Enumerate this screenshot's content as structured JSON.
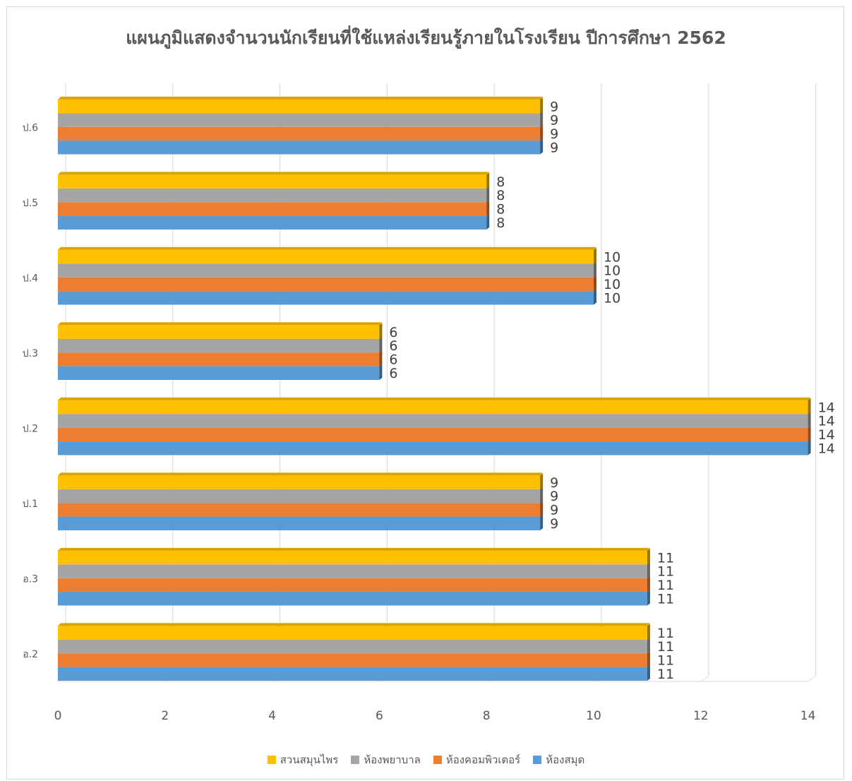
{
  "chart_data": {
    "type": "bar",
    "orientation": "horizontal",
    "title": "แผนภูมิแสดงจำนวนนักเรียนที่ใช้แหล่งเรียนรู้ภายในโรงเรียน ปีการศึกษา 2562",
    "categories": [
      "อ.2",
      "อ.3",
      "ป.1",
      "ป.2",
      "ป.3",
      "ป.4",
      "ป.5",
      "ป.6"
    ],
    "series": [
      {
        "name": "ห้องสมุด",
        "color": "#5b9bd5",
        "values": [
          11,
          11,
          9,
          14,
          6,
          10,
          8,
          9
        ]
      },
      {
        "name": "ห้องคอมพิวเตอร์",
        "color": "#ed7d31",
        "values": [
          11,
          11,
          9,
          14,
          6,
          10,
          8,
          9
        ]
      },
      {
        "name": "ห้องพยาบาล",
        "color": "#a5a5a5",
        "values": [
          11,
          11,
          9,
          14,
          6,
          10,
          8,
          9
        ]
      },
      {
        "name": "สวนสมุนไพร",
        "color": "#ffc000",
        "values": [
          11,
          11,
          9,
          14,
          6,
          10,
          8,
          9
        ]
      }
    ],
    "xlim": [
      0,
      14
    ],
    "xticks": [
      "0",
      "2",
      "4",
      "6",
      "8",
      "10",
      "12",
      "14"
    ],
    "legend_order": [
      "สวนสมุนไพร",
      "ห้องพยาบาล",
      "ห้องคอมพิวเตอร์",
      "ห้องสมุด"
    ],
    "legend_position": "bottom",
    "grid": true
  }
}
